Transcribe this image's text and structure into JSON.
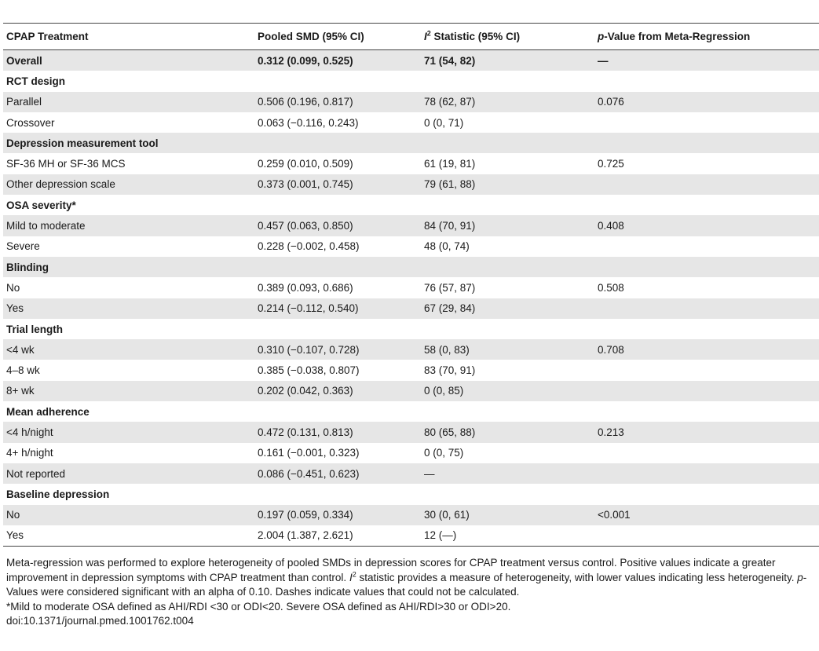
{
  "table": {
    "headers": {
      "col1": "CPAP Treatment",
      "col2": "Pooled SMD (95% CI)",
      "col3_italic": "I",
      "col3_sup": "2",
      "col3_rest": " Statistic (95% CI)",
      "col4_italic": "p",
      "col4_rest": "-Value from Meta-Regression"
    },
    "rows": [
      {
        "type": "group",
        "shade": true,
        "label": "Overall",
        "smd": "0.312 (0.099, 0.525)",
        "i2": "71 (54, 82)",
        "p": "—"
      },
      {
        "type": "group",
        "shade": false,
        "label": "RCT design",
        "smd": "",
        "i2": "",
        "p": ""
      },
      {
        "type": "data",
        "shade": true,
        "label": "Parallel",
        "smd": "0.506 (0.196, 0.817)",
        "i2": "78 (62, 87)",
        "p": "0.076"
      },
      {
        "type": "data",
        "shade": false,
        "label": "Crossover",
        "smd": "0.063 (−0.116, 0.243)",
        "i2": "0 (0, 71)",
        "p": ""
      },
      {
        "type": "group",
        "shade": true,
        "label": "Depression measurement tool",
        "smd": "",
        "i2": "",
        "p": ""
      },
      {
        "type": "data",
        "shade": false,
        "label": "SF-36 MH or SF-36 MCS",
        "smd": "0.259 (0.010, 0.509)",
        "i2": "61 (19, 81)",
        "p": "0.725"
      },
      {
        "type": "data",
        "shade": true,
        "label": "Other depression scale",
        "smd": "0.373 (0.001, 0.745)",
        "i2": "79 (61, 88)",
        "p": ""
      },
      {
        "type": "group",
        "shade": false,
        "label": "OSA severity*",
        "smd": "",
        "i2": "",
        "p": ""
      },
      {
        "type": "data",
        "shade": true,
        "label": "Mild to moderate",
        "smd": "0.457 (0.063, 0.850)",
        "i2": "84 (70, 91)",
        "p": "0.408"
      },
      {
        "type": "data",
        "shade": false,
        "label": "Severe",
        "smd": "0.228 (−0.002, 0.458)",
        "i2": "48 (0, 74)",
        "p": ""
      },
      {
        "type": "group",
        "shade": true,
        "label": "Blinding",
        "smd": "",
        "i2": "",
        "p": ""
      },
      {
        "type": "data",
        "shade": false,
        "label": "No",
        "smd": "0.389 (0.093, 0.686)",
        "i2": "76 (57, 87)",
        "p": "0.508"
      },
      {
        "type": "data",
        "shade": true,
        "label": "Yes",
        "smd": "0.214 (−0.112, 0.540)",
        "i2": "67 (29, 84)",
        "p": ""
      },
      {
        "type": "group",
        "shade": false,
        "label": "Trial length",
        "smd": "",
        "i2": "",
        "p": ""
      },
      {
        "type": "data",
        "shade": true,
        "label": "<4 wk",
        "smd": "0.310 (−0.107, 0.728)",
        "i2": "58 (0, 83)",
        "p": "0.708"
      },
      {
        "type": "data",
        "shade": false,
        "label": "4–8 wk",
        "smd": "0.385 (−0.038, 0.807)",
        "i2": "83 (70, 91)",
        "p": ""
      },
      {
        "type": "data",
        "shade": true,
        "label": "8+ wk",
        "smd": "0.202 (0.042, 0.363)",
        "i2": "0 (0, 85)",
        "p": ""
      },
      {
        "type": "group",
        "shade": false,
        "label": "Mean adherence",
        "smd": "",
        "i2": "",
        "p": ""
      },
      {
        "type": "data",
        "shade": true,
        "label": "<4 h/night",
        "smd": "0.472 (0.131, 0.813)",
        "i2": "80 (65, 88)",
        "p": "0.213"
      },
      {
        "type": "data",
        "shade": false,
        "label": "4+ h/night",
        "smd": "0.161 (−0.001, 0.323)",
        "i2": "0 (0, 75)",
        "p": ""
      },
      {
        "type": "data",
        "shade": true,
        "label": "Not reported",
        "smd": "0.086 (−0.451, 0.623)",
        "i2": "—",
        "p": ""
      },
      {
        "type": "group",
        "shade": false,
        "label": "Baseline depression",
        "smd": "",
        "i2": "",
        "p": ""
      },
      {
        "type": "data",
        "shade": true,
        "label": "No",
        "smd": "0.197 (0.059, 0.334)",
        "i2": "30 (0, 61)",
        "p": "<0.001"
      },
      {
        "type": "data",
        "shade": false,
        "label": "Yes",
        "smd": "2.004 (1.387, 2.621)",
        "i2": "12 (—)",
        "p": ""
      }
    ]
  },
  "notes": {
    "n1_a": "Meta-regression was performed to explore heterogeneity of pooled SMDs in depression scores for CPAP treatment versus control. Positive values indicate a greater improvement in depression symptoms with CPAP treatment than control. ",
    "n1_i": "I",
    "n1_sup": "2",
    "n1_b": " statistic provides a measure of heterogeneity, with lower values indicating less heterogeneity. ",
    "n1_p": "p",
    "n1_c": "-Values were considered significant with an alpha of 0.10. Dashes indicate values that could not be calculated.",
    "n2": "*Mild to moderate OSA defined as AHI/RDI <30 or ODI<20. Severe OSA defined as AHI/RDI>30 or ODI>20.",
    "doi": "doi:10.1371/journal.pmed.1001762.t004"
  }
}
